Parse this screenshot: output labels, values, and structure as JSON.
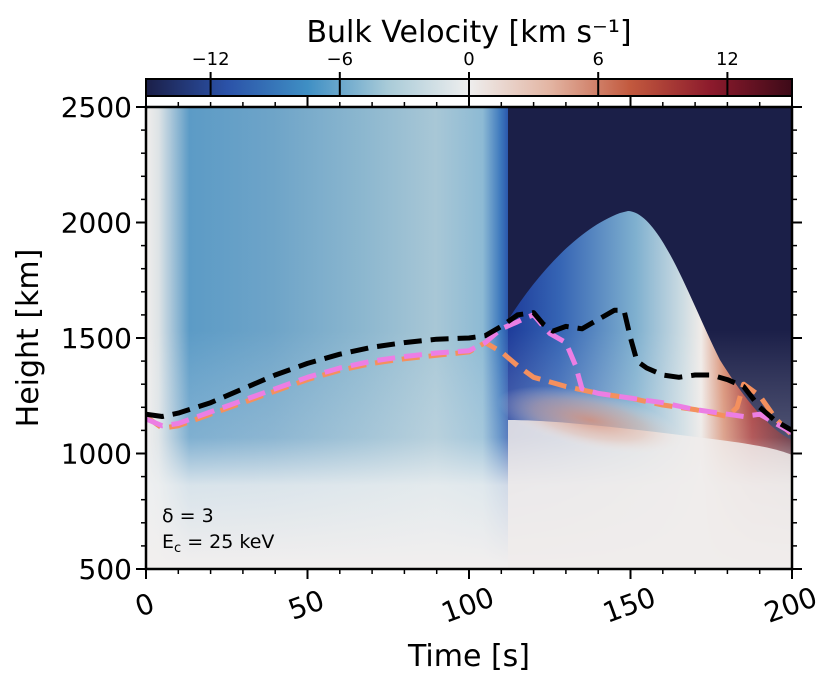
{
  "chart_data": {
    "type": "heatmap",
    "colorbar": {
      "label": "Bulk Velocity [km s⁻¹]",
      "range": [
        -15,
        15
      ],
      "ticks": [
        "−12",
        "−6",
        "0",
        "6",
        "12"
      ],
      "tick_values": [
        -12,
        -6,
        0,
        6,
        12
      ],
      "colormap": [
        "#1b1f48",
        "#2b52a8",
        "#3f8fc4",
        "#a9cbd8",
        "#eeeeee",
        "#e3b5a3",
        "#c2593e",
        "#8c1a2c",
        "#3d0a18"
      ],
      "position": "top"
    },
    "xlabel": "Time [s]",
    "ylabel": "Height [km]",
    "xlim": [
      0,
      200
    ],
    "ylim": [
      500,
      2500
    ],
    "xticks": [
      "0",
      "50",
      "100",
      "150",
      "200"
    ],
    "xtick_values": [
      0,
      50,
      100,
      150,
      200
    ],
    "yticks": [
      "500",
      "1000",
      "1500",
      "2000",
      "2500"
    ],
    "ytick_values": [
      500,
      1000,
      1500,
      2000,
      2500
    ],
    "annotation": {
      "line1": "δ = 3",
      "line2_main": "E",
      "line2_sub": "c",
      "line2_rest": " = 25 keV"
    },
    "series": [
      {
        "color": "#000000",
        "style": "dashed",
        "x": [
          0,
          5,
          10,
          20,
          30,
          40,
          50,
          60,
          70,
          80,
          90,
          100,
          105,
          110,
          115,
          120,
          123,
          126,
          130,
          135,
          140,
          145,
          148,
          150,
          152,
          155,
          160,
          165,
          170,
          175,
          180,
          185,
          190,
          195,
          200
        ],
        "y": [
          1170,
          1160,
          1175,
          1220,
          1280,
          1340,
          1390,
          1430,
          1460,
          1480,
          1495,
          1500,
          1510,
          1550,
          1600,
          1610,
          1560,
          1530,
          1550,
          1540,
          1580,
          1620,
          1620,
          1500,
          1400,
          1370,
          1340,
          1330,
          1340,
          1340,
          1320,
          1290,
          1200,
          1140,
          1100
        ]
      },
      {
        "color": "#f4905e",
        "style": "dashed",
        "x": [
          0,
          5,
          10,
          20,
          30,
          40,
          50,
          60,
          70,
          80,
          90,
          100,
          105,
          110,
          115,
          120,
          125,
          130,
          140,
          150,
          160,
          170,
          180,
          183,
          185,
          190,
          195,
          200
        ],
        "y": [
          1160,
          1110,
          1120,
          1170,
          1220,
          1270,
          1320,
          1360,
          1390,
          1410,
          1425,
          1440,
          1480,
          1440,
          1380,
          1330,
          1310,
          1290,
          1260,
          1240,
          1210,
          1190,
          1160,
          1200,
          1300,
          1250,
          1150,
          1080
        ]
      },
      {
        "color": "#ec7ee4",
        "style": "dashed",
        "x": [
          0,
          5,
          10,
          20,
          30,
          40,
          50,
          60,
          70,
          80,
          90,
          100,
          105,
          110,
          115,
          118,
          120,
          123,
          125,
          130,
          133,
          135,
          140,
          150,
          160,
          170,
          180,
          185,
          190,
          195,
          200
        ],
        "y": [
          1150,
          1120,
          1130,
          1180,
          1230,
          1280,
          1330,
          1370,
          1400,
          1420,
          1435,
          1445,
          1480,
          1540,
          1570,
          1590,
          1600,
          1550,
          1520,
          1480,
          1380,
          1280,
          1260,
          1240,
          1220,
          1190,
          1170,
          1160,
          1170,
          1130,
          1090
        ]
      }
    ]
  }
}
